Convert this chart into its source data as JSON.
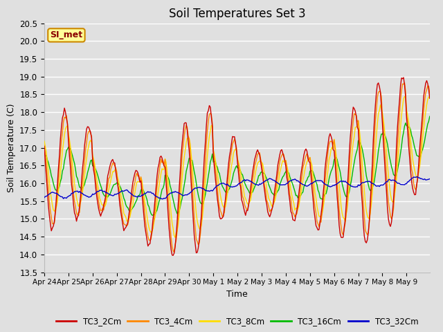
{
  "title": "Soil Temperatures Set 3",
  "xlabel": "Time",
  "ylabel": "Soil Temperature (C)",
  "ylim": [
    13.5,
    20.5
  ],
  "legend_labels": [
    "TC3_2Cm",
    "TC3_4Cm",
    "TC3_8Cm",
    "TC3_16Cm",
    "TC3_32Cm"
  ],
  "line_colors": [
    "#cc0000",
    "#ff8800",
    "#ffdd00",
    "#00bb00",
    "#0000cc"
  ],
  "bg_color": "#e0e0e0",
  "annotation_text": "SI_met",
  "annotation_bg": "#ffff99",
  "annotation_border": "#cc8800",
  "xtick_labels": [
    "Apr 24",
    "Apr 25",
    "Apr 26",
    "Apr 27",
    "Apr 28",
    "Apr 29",
    "Apr 30",
    "May 1",
    "May 2",
    "May 3",
    "May 4",
    "May 5",
    "May 6",
    "May 7",
    "May 8",
    "May 9"
  ],
  "ytick_values": [
    13.5,
    14.0,
    14.5,
    15.0,
    15.5,
    16.0,
    16.5,
    17.0,
    17.5,
    18.0,
    18.5,
    19.0,
    19.5,
    20.0,
    20.5
  ]
}
